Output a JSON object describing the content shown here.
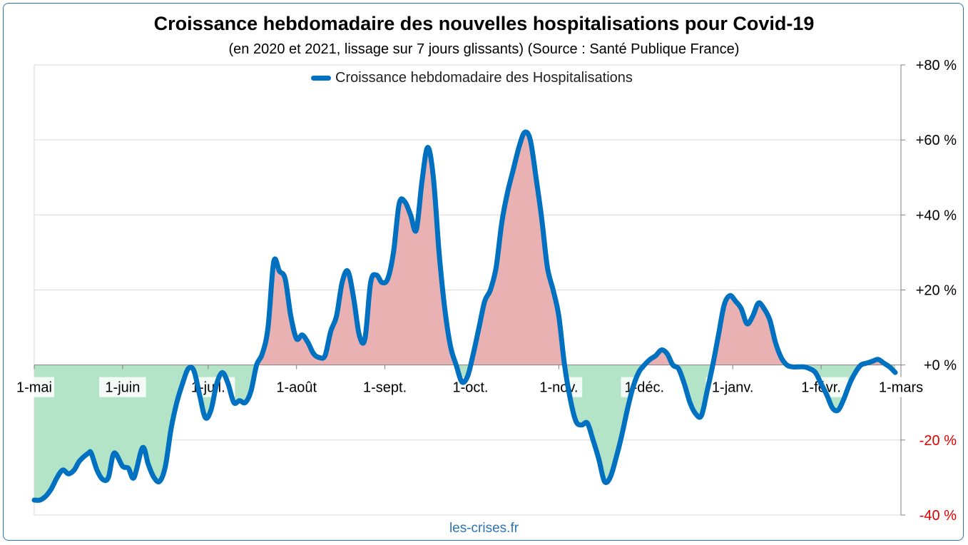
{
  "title": "Croissance hebdomadaire des nouvelles hospitalisations pour Covid-19",
  "subtitle": "(en 2020 et 2021, lissage sur 7 jours glissants) (Source : Santé Publique France)",
  "footer": "les-crises.fr",
  "colors": {
    "line": "#0070c0",
    "positive_fill": "#e9b1b1",
    "negative_fill": "#b4e4c7",
    "negative_tick": "#e00000",
    "footer": "#2e75b6",
    "grid": "#d9d9d9"
  },
  "chart_data": {
    "type": "area",
    "title": "Croissance hebdomadaire des nouvelles hospitalisations pour Covid-19",
    "subtitle": "(en 2020 et 2021, lissage sur 7 jours glissants) (Source : Santé Publique France)",
    "series": [
      {
        "name": "Croissance hebdomadaire des Hospitalisations",
        "points": [
          [
            "2020-05-01",
            -36
          ],
          [
            "2020-05-03",
            -36
          ],
          [
            "2020-05-05",
            -35
          ],
          [
            "2020-05-07",
            -33
          ],
          [
            "2020-05-09",
            -30
          ],
          [
            "2020-05-11",
            -28
          ],
          [
            "2020-05-13",
            -29
          ],
          [
            "2020-05-15",
            -28
          ],
          [
            "2020-05-17",
            -25.5
          ],
          [
            "2020-05-20",
            -23.5
          ],
          [
            "2020-05-21",
            -23.5
          ],
          [
            "2020-05-23",
            -28
          ],
          [
            "2020-05-25",
            -30.5
          ],
          [
            "2020-05-27",
            -30
          ],
          [
            "2020-05-29",
            -23.5
          ],
          [
            "2020-06-01",
            -27
          ],
          [
            "2020-06-03",
            -27.5
          ],
          [
            "2020-06-05",
            -30
          ],
          [
            "2020-06-08",
            -22
          ],
          [
            "2020-06-10",
            -26.5
          ],
          [
            "2020-06-12",
            -30
          ],
          [
            "2020-06-14",
            -31
          ],
          [
            "2020-06-16",
            -27
          ],
          [
            "2020-06-18",
            -17
          ],
          [
            "2020-06-20",
            -10
          ],
          [
            "2020-06-22",
            -5
          ],
          [
            "2020-06-24",
            -1
          ],
          [
            "2020-06-26",
            -1.5
          ],
          [
            "2020-06-28",
            -8
          ],
          [
            "2020-06-30",
            -14
          ],
          [
            "2020-07-02",
            -12
          ],
          [
            "2020-07-04",
            -5
          ],
          [
            "2020-07-06",
            -2
          ],
          [
            "2020-07-08",
            -5
          ],
          [
            "2020-07-10",
            -10
          ],
          [
            "2020-07-12",
            -9.5
          ],
          [
            "2020-07-14",
            -10
          ],
          [
            "2020-07-16",
            -7
          ],
          [
            "2020-07-18",
            0
          ],
          [
            "2020-07-20",
            3
          ],
          [
            "2020-07-22",
            10
          ],
          [
            "2020-07-24",
            27.5
          ],
          [
            "2020-07-26",
            25
          ],
          [
            "2020-07-28",
            23
          ],
          [
            "2020-07-30",
            13
          ],
          [
            "2020-08-01",
            7
          ],
          [
            "2020-08-03",
            8
          ],
          [
            "2020-08-05",
            6
          ],
          [
            "2020-08-07",
            3
          ],
          [
            "2020-08-09",
            2
          ],
          [
            "2020-08-11",
            2.5
          ],
          [
            "2020-08-13",
            9
          ],
          [
            "2020-08-15",
            13
          ],
          [
            "2020-08-17",
            22
          ],
          [
            "2020-08-19",
            25
          ],
          [
            "2020-08-21",
            18
          ],
          [
            "2020-08-23",
            8
          ],
          [
            "2020-08-25",
            7
          ],
          [
            "2020-08-27",
            22
          ],
          [
            "2020-08-29",
            24
          ],
          [
            "2020-08-31",
            22
          ],
          [
            "2020-09-02",
            23
          ],
          [
            "2020-09-04",
            30
          ],
          [
            "2020-09-06",
            43
          ],
          [
            "2020-09-08",
            43.5
          ],
          [
            "2020-09-10",
            40
          ],
          [
            "2020-09-12",
            36
          ],
          [
            "2020-09-14",
            49
          ],
          [
            "2020-09-16",
            58
          ],
          [
            "2020-09-18",
            50
          ],
          [
            "2020-09-20",
            30
          ],
          [
            "2020-09-22",
            15
          ],
          [
            "2020-09-24",
            5
          ],
          [
            "2020-09-26",
            0
          ],
          [
            "2020-09-28",
            -4.5
          ],
          [
            "2020-09-30",
            -3
          ],
          [
            "2020-10-02",
            3
          ],
          [
            "2020-10-04",
            10
          ],
          [
            "2020-10-06",
            17
          ],
          [
            "2020-10-08",
            20
          ],
          [
            "2020-10-10",
            26
          ],
          [
            "2020-10-12",
            38
          ],
          [
            "2020-10-14",
            46
          ],
          [
            "2020-10-16",
            52
          ],
          [
            "2020-10-18",
            58
          ],
          [
            "2020-10-20",
            62
          ],
          [
            "2020-10-22",
            60
          ],
          [
            "2020-10-24",
            50
          ],
          [
            "2020-10-26",
            39
          ],
          [
            "2020-10-28",
            26
          ],
          [
            "2020-10-30",
            20
          ],
          [
            "2020-11-01",
            13
          ],
          [
            "2020-11-03",
            0
          ],
          [
            "2020-11-05",
            -9
          ],
          [
            "2020-11-07",
            -15
          ],
          [
            "2020-11-09",
            -16
          ],
          [
            "2020-11-11",
            -15.5
          ],
          [
            "2020-11-13",
            -20
          ],
          [
            "2020-11-15",
            -25
          ],
          [
            "2020-11-17",
            -31
          ],
          [
            "2020-11-19",
            -30
          ],
          [
            "2020-11-21",
            -25
          ],
          [
            "2020-11-23",
            -19
          ],
          [
            "2020-11-25",
            -12
          ],
          [
            "2020-11-27",
            -6
          ],
          [
            "2020-11-29",
            -2
          ],
          [
            "2020-12-01",
            0
          ],
          [
            "2020-12-03",
            1.5
          ],
          [
            "2020-12-05",
            2.5
          ],
          [
            "2020-12-07",
            4
          ],
          [
            "2020-12-09",
            3
          ],
          [
            "2020-12-11",
            0
          ],
          [
            "2020-12-13",
            -1
          ],
          [
            "2020-12-15",
            -5
          ],
          [
            "2020-12-17",
            -10
          ],
          [
            "2020-12-19",
            -13
          ],
          [
            "2020-12-21",
            -13.5
          ],
          [
            "2020-12-23",
            -7
          ],
          [
            "2020-12-25",
            0
          ],
          [
            "2020-12-27",
            8
          ],
          [
            "2020-12-29",
            16
          ],
          [
            "2020-12-31",
            18.5
          ],
          [
            "2021-01-02",
            17
          ],
          [
            "2021-01-04",
            15
          ],
          [
            "2021-01-06",
            11
          ],
          [
            "2021-01-08",
            13
          ],
          [
            "2021-01-10",
            16.5
          ],
          [
            "2021-01-12",
            15
          ],
          [
            "2021-01-14",
            12
          ],
          [
            "2021-01-16",
            6
          ],
          [
            "2021-01-18",
            2
          ],
          [
            "2021-01-20",
            0
          ],
          [
            "2021-01-22",
            -0.5
          ],
          [
            "2021-01-24",
            -0.5
          ],
          [
            "2021-01-26",
            -0.5
          ],
          [
            "2021-01-28",
            -1
          ],
          [
            "2021-01-30",
            -2
          ],
          [
            "2021-02-01",
            -5
          ],
          [
            "2021-02-03",
            -8
          ],
          [
            "2021-02-05",
            -11.5
          ],
          [
            "2021-02-07",
            -12
          ],
          [
            "2021-02-09",
            -9
          ],
          [
            "2021-02-11",
            -5
          ],
          [
            "2021-02-13",
            -2
          ],
          [
            "2021-02-15",
            0
          ],
          [
            "2021-02-17",
            0.5
          ],
          [
            "2021-02-19",
            1
          ],
          [
            "2021-02-21",
            1.5
          ],
          [
            "2021-02-23",
            0.5
          ],
          [
            "2021-02-25",
            -0.5
          ],
          [
            "2021-02-27",
            -2
          ]
        ]
      }
    ],
    "x_ticks": [
      {
        "date": "2020-05-01",
        "label": "1-mai"
      },
      {
        "date": "2020-06-01",
        "label": "1-juin"
      },
      {
        "date": "2020-07-01",
        "label": "1-juil."
      },
      {
        "date": "2020-08-01",
        "label": "1-août"
      },
      {
        "date": "2020-09-01",
        "label": "1-sept."
      },
      {
        "date": "2020-10-01",
        "label": "1-oct."
      },
      {
        "date": "2020-11-01",
        "label": "1-nov."
      },
      {
        "date": "2020-12-01",
        "label": "1-déc."
      },
      {
        "date": "2021-01-01",
        "label": "1-janv."
      },
      {
        "date": "2021-02-01",
        "label": "1-févr."
      },
      {
        "date": "2021-03-01",
        "label": "1-mars"
      }
    ],
    "y_ticks": [
      {
        "value": 80,
        "label": "+80 %"
      },
      {
        "value": 60,
        "label": "+60 %"
      },
      {
        "value": 40,
        "label": "+40 %"
      },
      {
        "value": 20,
        "label": "+20 %"
      },
      {
        "value": 0,
        "label": "+0 %"
      },
      {
        "value": -20,
        "label": "-20 %"
      },
      {
        "value": -40,
        "label": "-40 %"
      }
    ],
    "xlim": [
      "2020-05-01",
      "2021-03-01"
    ],
    "ylim": [
      -40,
      80
    ],
    "y_axis_side": "right",
    "grid": true,
    "legend_position": "top-center"
  }
}
